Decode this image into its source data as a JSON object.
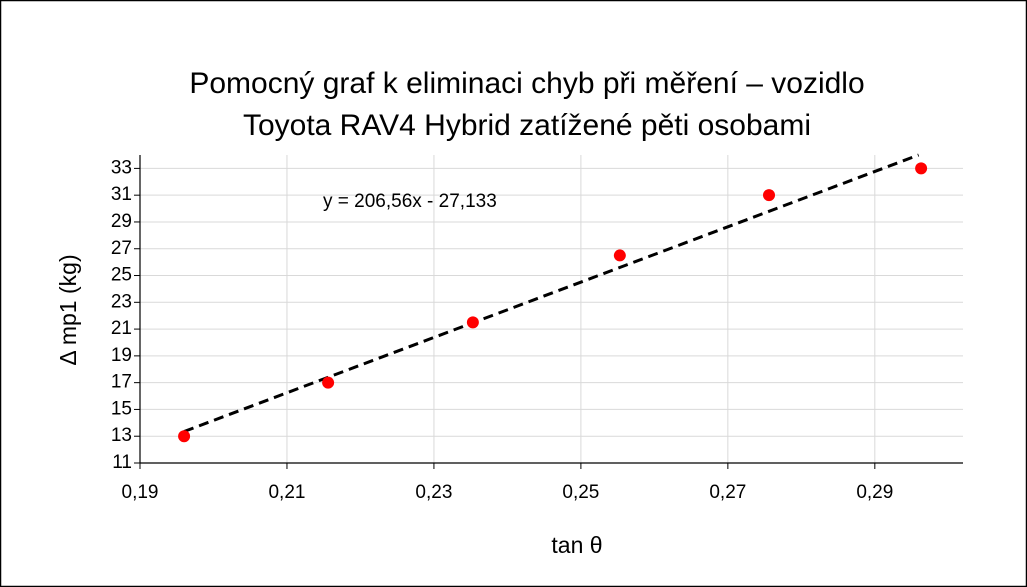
{
  "chart_data": {
    "type": "scatter",
    "title": [
      "Pomocný graf k eliminaci chyb při měření – vozidlo",
      "Toyota RAV4 Hybrid zatížené pěti osobami"
    ],
    "x_label": "tan θ",
    "y_label": "Δ mp1 (kg)",
    "series": [
      {
        "name": "Δ mp1",
        "color": "#ff0000",
        "x": [
          0.196,
          0.2156,
          0.2353,
          0.2553,
          0.2756,
          0.2963
        ],
        "values": [
          13,
          17,
          21.5,
          26.5,
          31,
          33
        ]
      }
    ],
    "trendline": {
      "slope": 206.56,
      "intercept": -27.133,
      "label": "y = 206,56x - 27,133",
      "color": "#000000"
    },
    "xlim": [
      0.19,
      0.302
    ],
    "ylim": [
      11,
      34
    ],
    "xticks": [
      {
        "value": 0.19,
        "label": "0,19"
      },
      {
        "value": 0.21,
        "label": "0,21"
      },
      {
        "value": 0.23,
        "label": "0,23"
      },
      {
        "value": 0.25,
        "label": "0,25"
      },
      {
        "value": 0.27,
        "label": "0,27"
      },
      {
        "value": 0.29,
        "label": "0,29"
      }
    ],
    "yticks": [
      11,
      13,
      15,
      17,
      19,
      21,
      23,
      25,
      27,
      29,
      31,
      33
    ],
    "grid": true
  }
}
